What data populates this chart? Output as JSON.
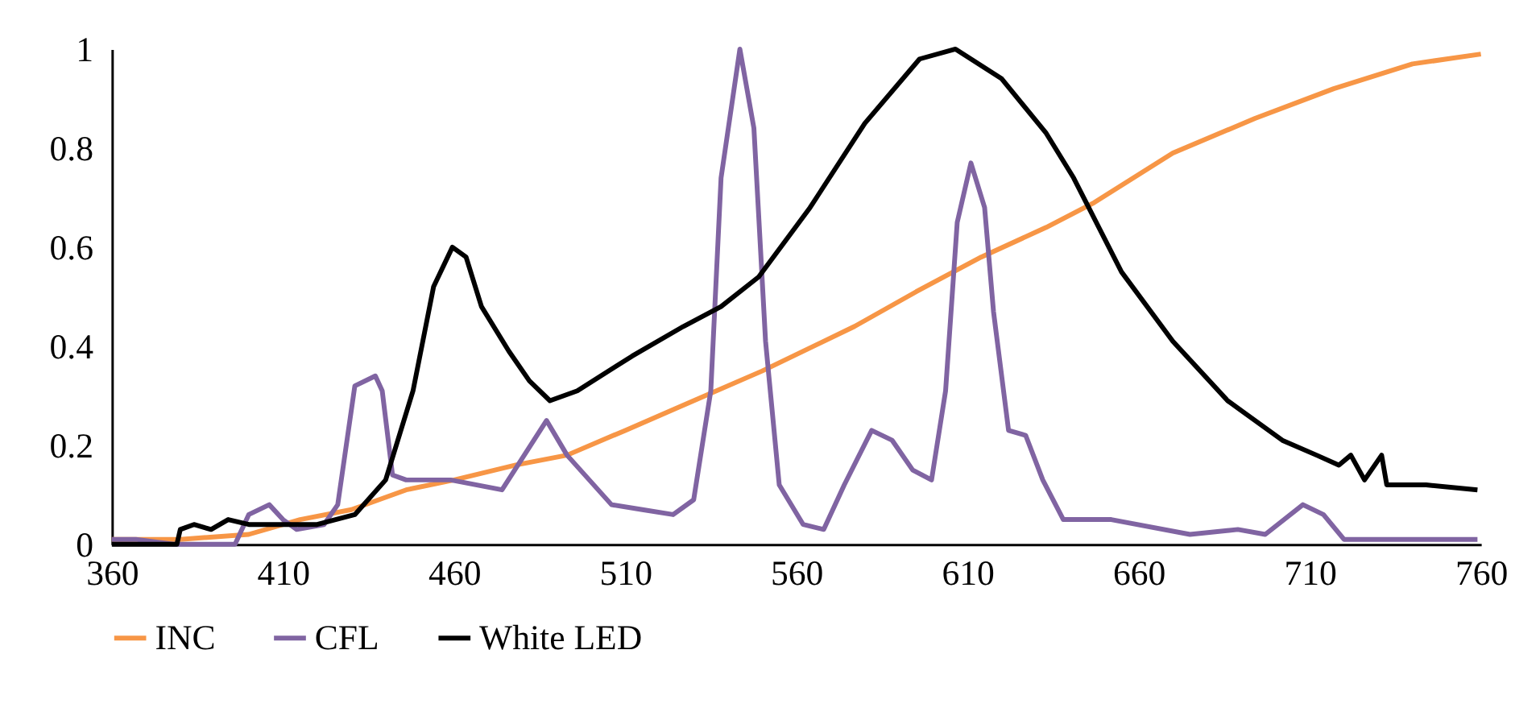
{
  "chart_data": {
    "type": "line",
    "xlim": [
      360,
      760
    ],
    "xticks": [
      360,
      410,
      460,
      510,
      560,
      610,
      660,
      710,
      760
    ],
    "ylim": [
      0,
      1
    ],
    "yticks": [
      0,
      0.2,
      0.4,
      0.6,
      0.8,
      1
    ],
    "grid": false,
    "legend": "bottom",
    "line_style": "solid",
    "marker": "none",
    "series": [
      {
        "name": "INC",
        "color": "#f79646",
        "x": [
          360,
          380,
          400,
          415,
          430,
          446,
          460,
          478,
          493,
          510,
          530,
          550,
          577,
          595,
          614,
          633,
          647,
          670,
          694,
          717,
          740,
          750,
          760
        ],
        "values": [
          0.01,
          0.01,
          0.02,
          0.05,
          0.07,
          0.11,
          0.13,
          0.16,
          0.18,
          0.23,
          0.29,
          0.35,
          0.44,
          0.51,
          0.58,
          0.64,
          0.69,
          0.79,
          0.86,
          0.92,
          0.97,
          0.98,
          0.99
        ]
      },
      {
        "name": "CFL",
        "color": "#8064a2",
        "x": [
          360,
          367,
          378,
          396,
          400,
          406,
          410,
          414,
          422,
          426,
          431,
          437,
          439,
          442,
          446,
          459,
          474,
          487,
          493,
          506,
          515,
          524,
          530,
          535,
          538,
          543.5,
          547.6,
          551,
          555,
          562,
          568,
          574,
          582,
          588,
          594,
          599.5,
          603.6,
          607,
          611,
          615,
          617.6,
          622,
          627,
          632,
          638,
          652,
          675,
          689,
          697,
          708,
          714,
          720,
          759
        ],
        "values": [
          0.01,
          0.01,
          0,
          0,
          0.06,
          0.08,
          0.05,
          0.03,
          0.04,
          0.08,
          0.32,
          0.34,
          0.31,
          0.14,
          0.13,
          0.13,
          0.11,
          0.25,
          0.18,
          0.08,
          0.07,
          0.06,
          0.09,
          0.31,
          0.74,
          1,
          0.84,
          0.41,
          0.12,
          0.04,
          0.03,
          0.12,
          0.23,
          0.21,
          0.15,
          0.13,
          0.31,
          0.65,
          0.77,
          0.68,
          0.47,
          0.23,
          0.22,
          0.13,
          0.05,
          0.05,
          0.02,
          0.03,
          0.02,
          0.08,
          0.06,
          0.01,
          0.01
        ]
      },
      {
        "name": "White LED",
        "color": "#000000",
        "x": [
          360,
          379,
          380,
          384,
          389,
          394,
          400,
          415,
          420,
          431,
          440,
          448,
          454,
          459.5,
          463.5,
          468,
          476,
          482,
          488,
          496,
          512,
          527,
          538,
          549,
          564,
          580,
          596,
          606.5,
          620,
          633,
          641,
          655,
          670,
          686,
          702,
          712,
          718.5,
          722,
          726,
          731,
          732.5,
          744,
          759
        ],
        "values": [
          0,
          0,
          0.03,
          0.04,
          0.03,
          0.05,
          0.04,
          0.04,
          0.04,
          0.06,
          0.13,
          0.31,
          0.52,
          0.6,
          0.58,
          0.48,
          0.39,
          0.33,
          0.29,
          0.31,
          0.38,
          0.44,
          0.48,
          0.54,
          0.68,
          0.85,
          0.98,
          1,
          0.94,
          0.83,
          0.74,
          0.55,
          0.41,
          0.29,
          0.21,
          0.18,
          0.16,
          0.18,
          0.13,
          0.18,
          0.12,
          0.12,
          0.11
        ]
      }
    ]
  }
}
